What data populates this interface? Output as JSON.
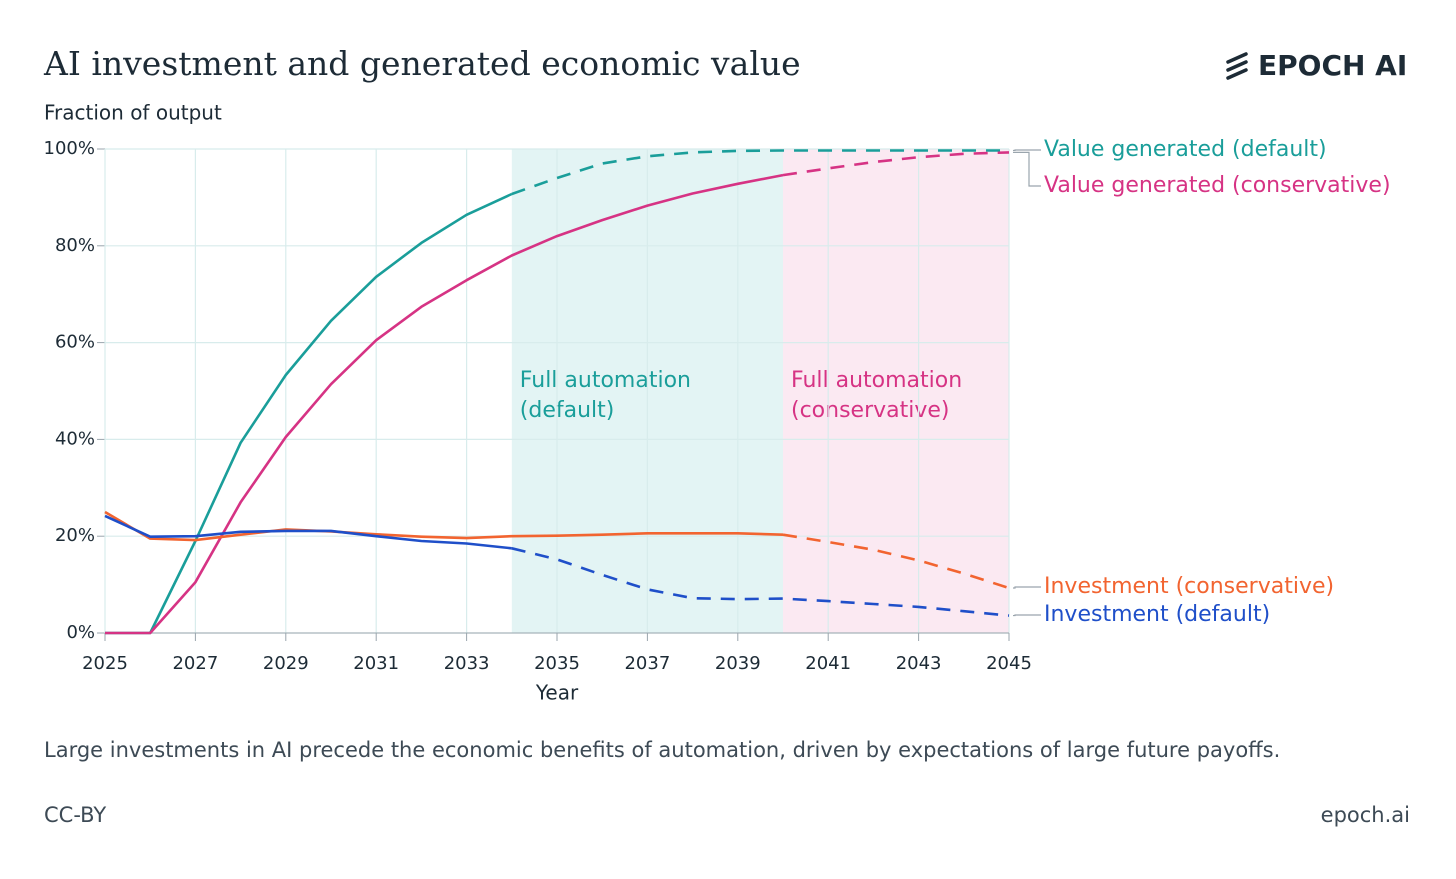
{
  "chart_data": {
    "type": "line",
    "title": "AI investment and generated economic value",
    "brand": "EPOCH AI",
    "y_label": "Fraction of output",
    "x_label": "Year",
    "caption": "Large investments in AI precede the economic benefits of automation, driven by expectations of large future payoffs.",
    "license": "CC-BY",
    "site": "epoch.ai",
    "x": [
      2025,
      2026,
      2027,
      2028,
      2029,
      2030,
      2031,
      2032,
      2033,
      2034,
      2035,
      2036,
      2037,
      2038,
      2039,
      2040,
      2041,
      2042,
      2043,
      2044,
      2045
    ],
    "xlim": [
      2025,
      2045
    ],
    "xticks": [
      2025,
      2027,
      2029,
      2031,
      2033,
      2035,
      2037,
      2039,
      2041,
      2043,
      2045
    ],
    "ylim": [
      0,
      100
    ],
    "yticks": [
      {
        "value": 0,
        "label": "0%"
      },
      {
        "value": 20,
        "label": "20%"
      },
      {
        "value": 40,
        "label": "40%"
      },
      {
        "value": 60,
        "label": "60%"
      },
      {
        "value": 80,
        "label": "80%"
      },
      {
        "value": 100,
        "label": "100%"
      }
    ],
    "grid": true,
    "regions": [
      {
        "label": [
          "Full automation",
          "(default)"
        ],
        "start": 2034,
        "end": 2040,
        "color": "#e3f4f4",
        "text_color": "#1a9e9a"
      },
      {
        "label": [
          "Full automation",
          "(conservative)"
        ],
        "start": 2040,
        "end": 2045,
        "color": "#fbe9f2",
        "text_color": "#d63384"
      }
    ],
    "series": [
      {
        "name": "Value generated (default)",
        "color": "#1a9e9a",
        "dashed_from": 2034,
        "values": [
          0,
          0,
          19,
          39.3,
          53.3,
          64.5,
          73.6,
          80.6,
          86.4,
          90.7,
          94,
          97,
          98.5,
          99.3,
          99.6,
          99.7,
          99.7,
          99.7,
          99.7,
          99.7,
          99.7
        ]
      },
      {
        "name": "Value generated (conservative)",
        "color": "#d63384",
        "dashed_from": 2040,
        "values": [
          0,
          0,
          10.5,
          27,
          40.5,
          51.4,
          60.5,
          67.4,
          72.9,
          78,
          82,
          85.3,
          88.3,
          90.8,
          92.8,
          94.6,
          96,
          97.3,
          98.3,
          99,
          99.3
        ]
      },
      {
        "name": "Investment (conservative)",
        "color": "#f26430",
        "dashed_from": 2040,
        "values": [
          25,
          19.5,
          19.2,
          20.3,
          21.4,
          21,
          20.4,
          19.9,
          19.6,
          20,
          20.1,
          20.3,
          20.6,
          20.6,
          20.6,
          20.3,
          18.8,
          17.2,
          15,
          12.3,
          9.3
        ]
      },
      {
        "name": "Investment (default)",
        "color": "#1f4fc9",
        "dashed_from": 2034,
        "values": [
          24.2,
          19.9,
          20,
          20.9,
          21.1,
          21.1,
          20,
          19,
          18.5,
          17.5,
          15.2,
          12,
          9,
          7.2,
          7,
          7.1,
          6.6,
          6,
          5.4,
          4.5,
          3.6
        ]
      }
    ]
  }
}
